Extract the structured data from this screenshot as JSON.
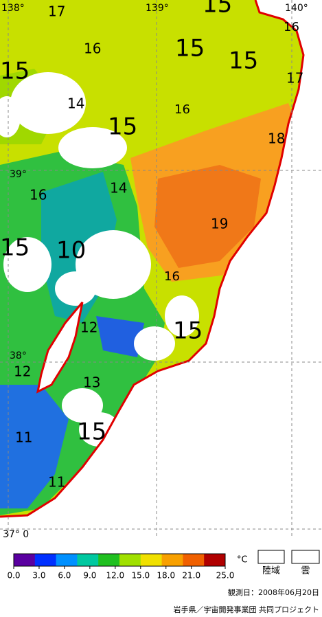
{
  "map": {
    "grid_labels": [
      "138°",
      "139°",
      "140°",
      "39°",
      "38°",
      "37° 0"
    ],
    "contour_labels": [
      "17",
      "15",
      "16",
      "16",
      "15",
      "15",
      "15",
      "17",
      "14",
      "16",
      "15",
      "18",
      "16",
      "14",
      "19",
      "15",
      "10",
      "16",
      "12",
      "15",
      "12",
      "13",
      "15",
      "11",
      "11"
    ]
  },
  "legend": {
    "colorbar": {
      "colors": [
        "#5a00a0",
        "#0030ff",
        "#0090ff",
        "#00c8a0",
        "#20c020",
        "#a0e000",
        "#f0e000",
        "#f8a000",
        "#f06000",
        "#b00000"
      ],
      "ticks": [
        {
          "value": 0,
          "label": "0.0"
        },
        {
          "value": 3,
          "label": "3.0"
        },
        {
          "value": 6,
          "label": "6.0"
        },
        {
          "value": 9,
          "label": "9.0"
        },
        {
          "value": 12,
          "label": "12.0"
        },
        {
          "value": 15,
          "label": "15.0"
        },
        {
          "value": 18,
          "label": "18.0"
        },
        {
          "value": 21,
          "label": "21.0"
        },
        {
          "value": 25,
          "label": "25.0"
        }
      ],
      "unit": "°C"
    },
    "land": "陸域",
    "cloud": "雲"
  },
  "footer": {
    "date": "観測日：2008年06月20日",
    "credit": "岩手県／宇宙開発事業団 共同プロジェクト"
  }
}
